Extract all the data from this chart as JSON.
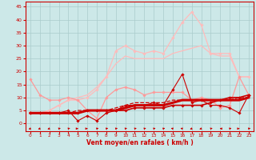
{
  "background_color": "#cce8e8",
  "grid_color": "#aacccc",
  "x_ticks": [
    0,
    1,
    2,
    3,
    4,
    5,
    6,
    7,
    8,
    9,
    10,
    11,
    12,
    13,
    14,
    15,
    16,
    17,
    18,
    19,
    20,
    21,
    22,
    23
  ],
  "xlabel": "Vent moyen/en rafales ( km/h )",
  "ylim": [
    -3,
    47
  ],
  "yticks": [
    0,
    5,
    10,
    15,
    20,
    25,
    30,
    35,
    40,
    45
  ],
  "line_avg_thick": {
    "y": [
      4,
      4,
      4,
      4,
      4,
      4,
      5,
      5,
      5,
      5,
      6,
      7,
      7,
      7,
      7,
      8,
      9,
      9,
      9,
      9,
      9,
      9,
      9,
      10
    ],
    "color": "#cc0000",
    "lw": 2.2,
    "marker": null
  },
  "line_avg_dash": {
    "y": [
      4,
      4,
      4,
      4,
      4,
      5,
      5,
      5,
      5,
      6,
      7,
      8,
      8,
      8,
      8,
      9,
      9,
      9,
      9,
      9,
      9,
      9,
      10,
      10
    ],
    "color": "#cc0000",
    "lw": 0.9,
    "marker": null,
    "dashed": true
  },
  "line_actual_dark": {
    "y": [
      4,
      4,
      4,
      4,
      5,
      1,
      3,
      1,
      4,
      5,
      7,
      7,
      7,
      8,
      7,
      13,
      19,
      8,
      9,
      7,
      7,
      6,
      4,
      11
    ],
    "color": "#cc0000",
    "lw": 0.8,
    "marker": "D",
    "ms": 1.8
  },
  "line_actual_marker": {
    "y": [
      4,
      4,
      4,
      4,
      4,
      4,
      5,
      5,
      5,
      5,
      5,
      6,
      6,
      6,
      6,
      7,
      7,
      7,
      7,
      8,
      9,
      10,
      10,
      11
    ],
    "color": "#cc0000",
    "lw": 1.2,
    "marker": "D",
    "ms": 1.8
  },
  "line_gust_light1": {
    "y": [
      17,
      11,
      9,
      9,
      10,
      9,
      5,
      2,
      10,
      13,
      14,
      13,
      11,
      12,
      12,
      12,
      12,
      9,
      10,
      9,
      6,
      7,
      18,
      11
    ],
    "color": "#ff9999",
    "lw": 0.9,
    "marker": "D",
    "ms": 1.8
  },
  "line_gust_light2": {
    "y": [
      4,
      4,
      5,
      7,
      9,
      9,
      10,
      13,
      18,
      28,
      30,
      28,
      27,
      28,
      27,
      33,
      39,
      43,
      38,
      27,
      27,
      27,
      18,
      18
    ],
    "color": "#ffbbbb",
    "lw": 0.9,
    "marker": "D",
    "ms": 1.8
  },
  "line_gust_trend": {
    "y": [
      4,
      4,
      5,
      7,
      9,
      10,
      11,
      14,
      18,
      23,
      26,
      25,
      25,
      25,
      25,
      27,
      28,
      29,
      30,
      27,
      26,
      26,
      18,
      18
    ],
    "color": "#ffbbbb",
    "lw": 0.9,
    "marker": null
  },
  "arrows": {
    "angles": [
      225,
      225,
      225,
      45,
      45,
      90,
      90,
      45,
      45,
      45,
      45,
      45,
      45,
      45,
      45,
      315,
      315,
      225,
      225,
      45,
      270,
      45,
      90,
      45
    ]
  }
}
